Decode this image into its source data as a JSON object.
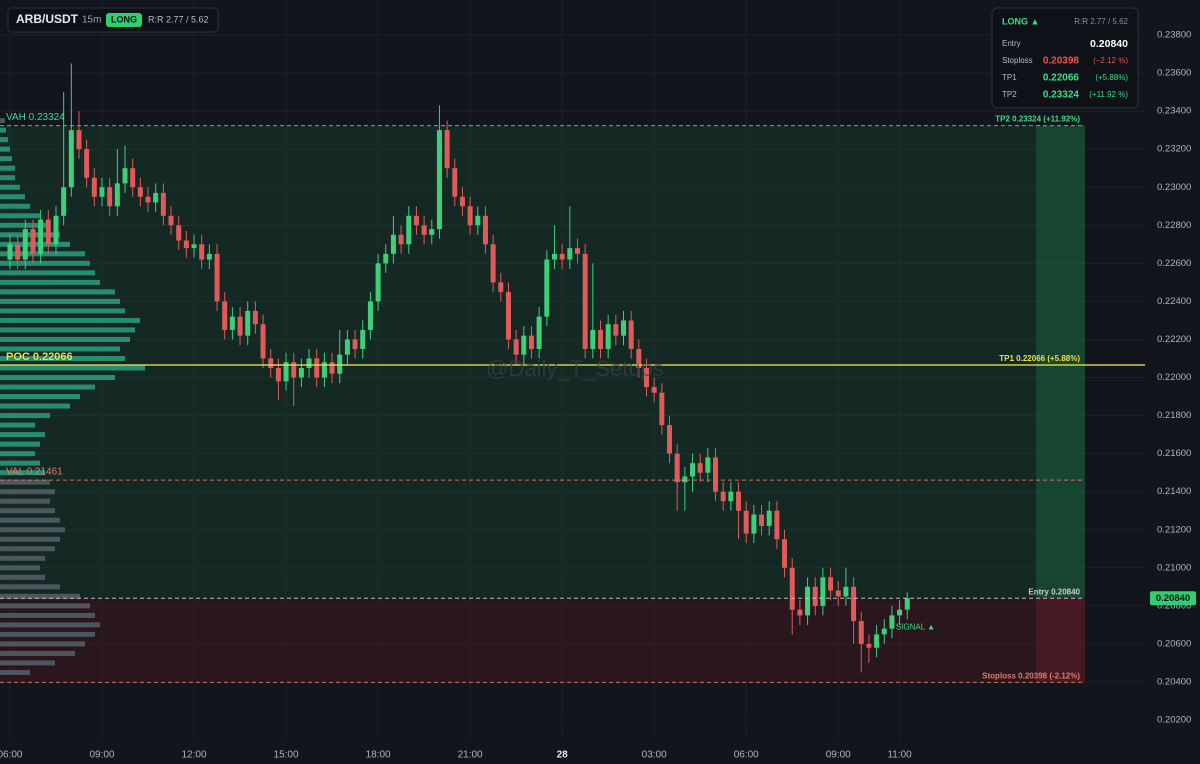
{
  "chart_data": {
    "type": "candlestick",
    "header": {
      "symbol": "ARB/USDT",
      "interval": "15m",
      "side": "LONG",
      "rr": "R:R 2.77 / 5.62"
    },
    "info": {
      "side": "LONG ▲",
      "rr": "R:R 2.77 / 5.62",
      "rows": [
        {
          "label": "Entry",
          "value": "0.20840",
          "color": "#ffffff"
        },
        {
          "label": "Stoploss",
          "value": "0.20398",
          "pct": "(−2.12 %)",
          "color": "#ef5350"
        },
        {
          "label": "TP1",
          "value": "0.22066",
          "pct": "(+5.88%)",
          "color": "#3ddc84"
        },
        {
          "label": "TP2",
          "value": "0.23324",
          "pct": "(+11.92 %)",
          "color": "#3ddc84"
        }
      ]
    },
    "watermark": "@Daily_T_Setups",
    "signal": "SIGNAL ▲",
    "up_color": "#3ecf7a",
    "down_color": "#e05a5a",
    "ylim": [
      0.20095,
      0.23984
    ],
    "yticks": [
      {
        "value": 0.202,
        "label": "0.20200"
      },
      {
        "value": 0.204,
        "label": "0.20400"
      },
      {
        "value": 0.206,
        "label": "0.20600"
      },
      {
        "value": 0.208,
        "label": "0.20800"
      },
      {
        "value": 0.21,
        "label": "0.21000"
      },
      {
        "value": 0.212,
        "label": "0.21200"
      },
      {
        "value": 0.214,
        "label": "0.21400"
      },
      {
        "value": 0.216,
        "label": "0.21600"
      },
      {
        "value": 0.218,
        "label": "0.21800"
      },
      {
        "value": 0.22,
        "label": "0.22000"
      },
      {
        "value": 0.222,
        "label": "0.22200"
      },
      {
        "value": 0.224,
        "label": "0.22400"
      },
      {
        "value": 0.226,
        "label": "0.22600"
      },
      {
        "value": 0.228,
        "label": "0.22800"
      },
      {
        "value": 0.23,
        "label": "0.23000"
      },
      {
        "value": 0.232,
        "label": "0.23200"
      },
      {
        "value": 0.234,
        "label": "0.23400"
      },
      {
        "value": 0.236,
        "label": "0.23600"
      },
      {
        "value": 0.238,
        "label": "0.23800"
      }
    ],
    "xlim": [
      -1.3,
      148
    ],
    "xticks": [
      {
        "value": 0,
        "label": "06:00"
      },
      {
        "value": 12,
        "label": "09:00"
      },
      {
        "value": 24,
        "label": "12:00"
      },
      {
        "value": 36,
        "label": "15:00"
      },
      {
        "value": 48,
        "label": "18:00"
      },
      {
        "value": 60,
        "label": "21:00"
      },
      {
        "value": 72,
        "label": "28"
      },
      {
        "value": 84,
        "label": "03:00"
      },
      {
        "value": 96,
        "label": "06:00"
      },
      {
        "value": 108,
        "label": "09:00"
      },
      {
        "value": 116,
        "label": "11:00"
      }
    ],
    "grid": true,
    "open": [
      0.2262,
      0.227,
      0.2262,
      0.2278,
      0.2265,
      0.2283,
      0.227,
      0.2285,
      0.23,
      0.233,
      0.232,
      0.2305,
      0.2295,
      0.23,
      0.229,
      0.2302,
      0.231,
      0.23,
      0.2295,
      0.2292,
      0.2297,
      0.2285,
      0.228,
      0.2272,
      0.2268,
      0.227,
      0.2262,
      0.2265,
      0.224,
      0.2225,
      0.2232,
      0.2222,
      0.2235,
      0.2228,
      0.221,
      0.2205,
      0.2198,
      0.2208,
      0.22,
      0.2205,
      0.221,
      0.22,
      0.2208,
      0.2202,
      0.2212,
      0.222,
      0.2215,
      0.2225,
      0.224,
      0.226,
      0.2265,
      0.2275,
      0.227,
      0.2285,
      0.228,
      0.2275,
      0.2278,
      0.233,
      0.231,
      0.2295,
      0.229,
      0.228,
      0.2285,
      0.227,
      0.225,
      0.2245,
      0.222,
      0.2212,
      0.2222,
      0.2215,
      0.2232,
      0.2262,
      0.2265,
      0.2262,
      0.2268,
      0.2265,
      0.2215,
      0.2225,
      0.2215,
      0.2228,
      0.2222,
      0.223,
      0.2215,
      0.2205,
      0.2195,
      0.2192,
      0.2175,
      0.216,
      0.2145,
      0.2148,
      0.2155,
      0.215,
      0.2158,
      0.214,
      0.2135,
      0.214,
      0.213,
      0.2118,
      0.2128,
      0.2122,
      0.213,
      0.2115,
      0.21,
      0.2078,
      0.2075,
      0.209,
      0.208,
      0.2095,
      0.2088,
      0.2085,
      0.209,
      0.2072,
      0.206,
      0.2058,
      0.2065,
      0.2068,
      0.2075,
      0.2078
    ],
    "high": [
      0.2275,
      0.2275,
      0.2283,
      0.2283,
      0.2288,
      0.2288,
      0.229,
      0.235,
      0.2365,
      0.234,
      0.2325,
      0.231,
      0.2305,
      0.2305,
      0.232,
      0.2322,
      0.2315,
      0.2305,
      0.23,
      0.2302,
      0.2302,
      0.229,
      0.2285,
      0.2277,
      0.2275,
      0.2275,
      0.227,
      0.227,
      0.2245,
      0.2237,
      0.2237,
      0.224,
      0.224,
      0.2233,
      0.2215,
      0.221,
      0.2213,
      0.2213,
      0.221,
      0.2215,
      0.2215,
      0.2213,
      0.2213,
      0.2225,
      0.2225,
      0.2225,
      0.223,
      0.2245,
      0.2265,
      0.227,
      0.2285,
      0.228,
      0.229,
      0.229,
      0.2285,
      0.2283,
      0.2343,
      0.2335,
      0.2315,
      0.23,
      0.2295,
      0.229,
      0.229,
      0.2275,
      0.2255,
      0.225,
      0.2225,
      0.2227,
      0.2227,
      0.2237,
      0.2267,
      0.228,
      0.227,
      0.229,
      0.2273,
      0.227,
      0.226,
      0.223,
      0.2233,
      0.2233,
      0.2235,
      0.2235,
      0.222,
      0.221,
      0.22,
      0.2197,
      0.218,
      0.2165,
      0.2153,
      0.216,
      0.216,
      0.2163,
      0.2163,
      0.2145,
      0.2145,
      0.2145,
      0.2135,
      0.2133,
      0.2133,
      0.2135,
      0.2135,
      0.212,
      0.2105,
      0.2083,
      0.2095,
      0.2095,
      0.21,
      0.21,
      0.2093,
      0.21,
      0.2095,
      0.2077,
      0.2065,
      0.207,
      0.2073,
      0.208,
      0.2083,
      0.2087
    ],
    "low": [
      0.2257,
      0.2257,
      0.2257,
      0.226,
      0.226,
      0.2265,
      0.2265,
      0.228,
      0.2295,
      0.2315,
      0.23,
      0.229,
      0.229,
      0.2285,
      0.2285,
      0.2297,
      0.2295,
      0.229,
      0.2287,
      0.2287,
      0.228,
      0.2275,
      0.2267,
      0.2263,
      0.2263,
      0.2257,
      0.2257,
      0.2235,
      0.222,
      0.222,
      0.2217,
      0.2217,
      0.2223,
      0.2205,
      0.22,
      0.2188,
      0.2193,
      0.2185,
      0.2195,
      0.22,
      0.2195,
      0.2195,
      0.2197,
      0.2197,
      0.2207,
      0.221,
      0.221,
      0.222,
      0.2235,
      0.2255,
      0.226,
      0.2265,
      0.2265,
      0.2275,
      0.227,
      0.227,
      0.2273,
      0.2305,
      0.229,
      0.2285,
      0.2275,
      0.2275,
      0.2265,
      0.2245,
      0.224,
      0.2215,
      0.2207,
      0.2207,
      0.221,
      0.221,
      0.2227,
      0.2257,
      0.2257,
      0.2257,
      0.226,
      0.221,
      0.221,
      0.221,
      0.221,
      0.2217,
      0.2217,
      0.221,
      0.22,
      0.219,
      0.2187,
      0.217,
      0.2155,
      0.213,
      0.213,
      0.214,
      0.2145,
      0.2145,
      0.2135,
      0.213,
      0.213,
      0.2115,
      0.2113,
      0.2113,
      0.2117,
      0.2117,
      0.211,
      0.2095,
      0.2065,
      0.207,
      0.207,
      0.2075,
      0.2075,
      0.2083,
      0.208,
      0.208,
      0.206,
      0.2045,
      0.205,
      0.2053,
      0.206,
      0.2063,
      0.207,
      0.2073
    ],
    "close": [
      0.227,
      0.2262,
      0.2278,
      0.2265,
      0.2283,
      0.227,
      0.2285,
      0.23,
      0.233,
      0.232,
      0.2305,
      0.2295,
      0.23,
      0.229,
      0.2302,
      0.231,
      0.23,
      0.2295,
      0.2292,
      0.2297,
      0.2285,
      0.228,
      0.2272,
      0.2268,
      0.227,
      0.2262,
      0.2265,
      0.224,
      0.2225,
      0.2232,
      0.2222,
      0.2235,
      0.2228,
      0.221,
      0.2205,
      0.2198,
      0.2208,
      0.22,
      0.2205,
      0.221,
      0.22,
      0.2208,
      0.2202,
      0.2212,
      0.222,
      0.2215,
      0.2225,
      0.224,
      0.226,
      0.2265,
      0.2275,
      0.227,
      0.2285,
      0.228,
      0.2275,
      0.2278,
      0.233,
      0.231,
      0.2295,
      0.229,
      0.228,
      0.2285,
      0.227,
      0.225,
      0.2245,
      0.222,
      0.2212,
      0.2222,
      0.2215,
      0.2232,
      0.2262,
      0.2265,
      0.2262,
      0.2268,
      0.2265,
      0.2215,
      0.2225,
      0.2215,
      0.2228,
      0.2222,
      0.223,
      0.2215,
      0.2205,
      0.2195,
      0.2192,
      0.2175,
      0.216,
      0.2145,
      0.2148,
      0.2155,
      0.215,
      0.2158,
      0.214,
      0.2135,
      0.214,
      0.213,
      0.2118,
      0.2128,
      0.2122,
      0.213,
      0.2115,
      0.21,
      0.2078,
      0.2075,
      0.209,
      0.208,
      0.2095,
      0.2088,
      0.2085,
      0.209,
      0.2072,
      0.206,
      0.2058,
      0.2065,
      0.2068,
      0.2075,
      0.2078,
      0.2084
    ],
    "profile": {
      "prices": [
        0.2045,
        0.205,
        0.2055,
        0.206,
        0.2065,
        0.207,
        0.2075,
        0.208,
        0.2085,
        0.209,
        0.2095,
        0.21,
        0.2105,
        0.211,
        0.2115,
        0.212,
        0.2125,
        0.213,
        0.2135,
        0.214,
        0.2145,
        0.215,
        0.2155,
        0.216,
        0.2165,
        0.217,
        0.2175,
        0.218,
        0.2185,
        0.219,
        0.2195,
        0.22,
        0.2205,
        0.221,
        0.2215,
        0.222,
        0.2225,
        0.223,
        0.2235,
        0.224,
        0.2245,
        0.225,
        0.2255,
        0.226,
        0.2265,
        0.227,
        0.2275,
        0.228,
        0.2285,
        0.229,
        0.2295,
        0.23,
        0.2305,
        0.231,
        0.2315,
        0.232,
        0.2325,
        0.233,
        0.2335
      ],
      "volumes": [
        30,
        55,
        75,
        85,
        95,
        100,
        95,
        90,
        80,
        60,
        45,
        40,
        45,
        55,
        60,
        65,
        60,
        55,
        50,
        55,
        50,
        45,
        40,
        35,
        40,
        45,
        35,
        50,
        70,
        80,
        95,
        115,
        145,
        125,
        120,
        130,
        135,
        140,
        125,
        120,
        115,
        100,
        95,
        90,
        85,
        70,
        60,
        50,
        40,
        30,
        25,
        20,
        15,
        15,
        12,
        10,
        8,
        6,
        5
      ],
      "color": "#2a9d80",
      "outside_color": "#56606a"
    },
    "lines": [
      {
        "value": 0.23324,
        "color": "#3ddc84",
        "dashed": true,
        "left": "VAH  0.23324",
        "right": "TP2 0.23324 (+11.92%)"
      },
      {
        "value": 0.22066,
        "color": "#e6e04a",
        "dashed": false,
        "left": "POC  0.22066",
        "right": "TP1 0.22066 (+5.88%)"
      },
      {
        "value": 0.21461,
        "color": "#e07a6a",
        "dashed": true,
        "left": "VAL  0.21461"
      },
      {
        "value": 0.2084,
        "color": "#c8ccd4",
        "dashed": true,
        "right": "Entry 0.20840"
      },
      {
        "value": 0.20398,
        "color": "#e07a6a",
        "dashed": true,
        "right": "Stoploss 0.20398 (-2.12%)"
      }
    ],
    "last_price": {
      "value": 0.2084,
      "label": "0.20840",
      "color": "#2fcf6f"
    }
  }
}
